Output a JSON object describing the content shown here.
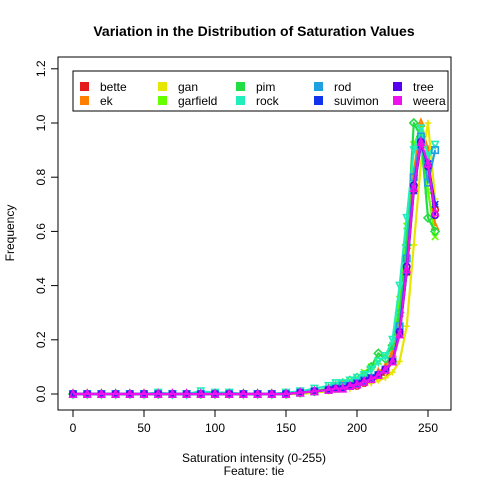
{
  "chart_data": {
    "type": "line",
    "title": "Variation in the Distribution of Saturation Values",
    "xlabel": "Saturation  intensity (0-255)",
    "subtitle": "Feature: tie",
    "ylabel": "Frequency",
    "xlim": [
      0,
      255
    ],
    "ylim": [
      0,
      1.2
    ],
    "x_ticks": [
      0,
      50,
      100,
      150,
      200,
      250
    ],
    "y_ticks": [
      0.0,
      0.2,
      0.4,
      0.6,
      0.8,
      1.0,
      1.2
    ],
    "y_tick_labels": [
      "0.0",
      "0.2",
      "0.4",
      "0.6",
      "0.8",
      "1.0",
      "1.2"
    ],
    "x": [
      0,
      10,
      20,
      30,
      40,
      50,
      60,
      70,
      80,
      90,
      100,
      110,
      120,
      130,
      140,
      150,
      160,
      170,
      180,
      185,
      190,
      195,
      200,
      205,
      210,
      215,
      220,
      225,
      230,
      235,
      240,
      245,
      250,
      255
    ],
    "legend_position": "top",
    "series": [
      {
        "name": "bette",
        "color": "#e41a1c",
        "values": [
          0,
          0,
          0,
          0,
          0,
          0,
          0,
          0,
          0,
          0,
          0,
          0,
          0,
          0,
          0,
          0,
          0.005,
          0.01,
          0.015,
          0.02,
          0.02,
          0.03,
          0.03,
          0.04,
          0.05,
          0.06,
          0.08,
          0.12,
          0.22,
          0.45,
          0.75,
          0.92,
          0.85,
          0.68
        ]
      },
      {
        "name": "ek",
        "color": "#ff7f00",
        "values": [
          0,
          0,
          0,
          0,
          0,
          0,
          0,
          0,
          0,
          0,
          0,
          0,
          0,
          0,
          0,
          0,
          0.005,
          0.01,
          0.02,
          0.02,
          0.03,
          0.03,
          0.04,
          0.05,
          0.06,
          0.08,
          0.1,
          0.15,
          0.3,
          0.55,
          0.82,
          1.0,
          0.9,
          0.62
        ]
      },
      {
        "name": "gan",
        "color": "#e6e600",
        "values": [
          0,
          0,
          0,
          0,
          0,
          0,
          0,
          0,
          0,
          0,
          0,
          0,
          0,
          0,
          0,
          0,
          0,
          0.005,
          0.01,
          0.015,
          0.02,
          0.02,
          0.03,
          0.04,
          0.04,
          0.05,
          0.06,
          0.08,
          0.12,
          0.25,
          0.55,
          0.85,
          1.0,
          0.72
        ]
      },
      {
        "name": "garfield",
        "color": "#66ff00",
        "values": [
          0,
          0,
          0,
          0,
          0,
          0,
          0,
          0,
          0,
          0,
          0,
          0,
          0,
          0,
          0,
          0,
          0.005,
          0.01,
          0.02,
          0.03,
          0.04,
          0.05,
          0.06,
          0.08,
          0.1,
          0.12,
          0.14,
          0.18,
          0.35,
          0.62,
          0.92,
          0.98,
          0.75,
          0.58
        ]
      },
      {
        "name": "pim",
        "color": "#22dd44",
        "values": [
          0,
          0,
          0,
          0,
          0,
          0,
          0,
          0,
          0,
          0,
          0,
          0,
          0,
          0,
          0,
          0,
          0.005,
          0.01,
          0.02,
          0.03,
          0.04,
          0.05,
          0.06,
          0.07,
          0.1,
          0.15,
          0.13,
          0.18,
          0.3,
          0.55,
          1.0,
          0.95,
          0.65,
          0.6
        ]
      },
      {
        "name": "rock",
        "color": "#22eebb",
        "values": [
          0,
          0,
          0,
          0,
          0,
          0,
          0.005,
          0,
          0,
          0.01,
          0.005,
          0.005,
          0,
          0,
          0,
          0.005,
          0.01,
          0.02,
          0.03,
          0.04,
          0.04,
          0.05,
          0.06,
          0.07,
          0.09,
          0.12,
          0.14,
          0.2,
          0.4,
          0.65,
          0.9,
          0.98,
          0.88,
          0.92
        ]
      },
      {
        "name": "rod",
        "color": "#1fa0e0",
        "values": [
          0,
          0,
          0,
          0,
          0,
          0,
          0,
          0,
          0,
          0,
          0,
          0,
          0,
          0,
          0,
          0,
          0.005,
          0.01,
          0.015,
          0.02,
          0.03,
          0.03,
          0.04,
          0.05,
          0.06,
          0.07,
          0.09,
          0.12,
          0.25,
          0.5,
          0.8,
          0.95,
          0.78,
          0.9
        ]
      },
      {
        "name": "suvimon",
        "color": "#1133ee",
        "values": [
          0,
          0,
          0,
          0,
          0,
          0,
          0,
          0,
          0,
          0,
          0,
          0,
          0,
          0,
          0,
          0,
          0.005,
          0.01,
          0.015,
          0.02,
          0.02,
          0.03,
          0.04,
          0.05,
          0.06,
          0.07,
          0.09,
          0.12,
          0.22,
          0.45,
          0.75,
          0.92,
          0.85,
          0.7
        ]
      },
      {
        "name": "tree",
        "color": "#5500ee",
        "values": [
          0,
          0,
          0,
          0,
          0,
          0,
          0,
          0,
          0,
          0,
          0,
          0,
          0,
          0,
          0,
          0,
          0.005,
          0.01,
          0.015,
          0.02,
          0.02,
          0.03,
          0.035,
          0.045,
          0.055,
          0.07,
          0.09,
          0.12,
          0.23,
          0.47,
          0.77,
          0.93,
          0.84,
          0.66
        ]
      },
      {
        "name": "weera",
        "color": "#ee11ee",
        "values": [
          0,
          0,
          0,
          0,
          0,
          0,
          0,
          0,
          0,
          0,
          0,
          0,
          0,
          0,
          0,
          0,
          0.005,
          0.01,
          0.015,
          0.02,
          0.02,
          0.03,
          0.035,
          0.045,
          0.055,
          0.07,
          0.09,
          0.12,
          0.22,
          0.46,
          0.76,
          0.93,
          0.85,
          0.67
        ]
      }
    ]
  }
}
